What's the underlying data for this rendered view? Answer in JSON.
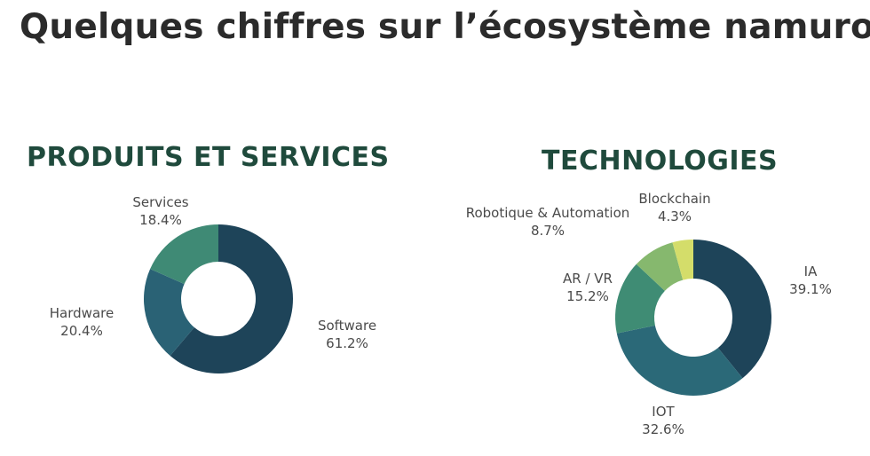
{
  "page": {
    "title": "Quelques chiffres sur l’écosystème namurois"
  },
  "chart_data": [
    {
      "type": "pie",
      "title": "PRODUITS ET SERVICES",
      "slices": [
        {
          "label": "Software",
          "value": 61.2,
          "display": "61.2%",
          "color": "#1e4459"
        },
        {
          "label": "Hardware",
          "value": 20.4,
          "display": "20.4%",
          "color": "#2a6275"
        },
        {
          "label": "Services",
          "value": 18.4,
          "display": "18.4%",
          "color": "#3f8a75"
        }
      ]
    },
    {
      "type": "pie",
      "title": "TECHNOLOGIES",
      "slices": [
        {
          "label": "IA",
          "value": 39.1,
          "display": "39.1%",
          "color": "#1e4459"
        },
        {
          "label": "IOT",
          "value": 32.6,
          "display": "32.6%",
          "color": "#2b6978"
        },
        {
          "label": "AR / VR",
          "value": 15.2,
          "display": "15.2%",
          "color": "#3f8c74"
        },
        {
          "label": "Robotique & Automation",
          "value": 8.7,
          "display": "8.7%",
          "color": "#86b86e"
        },
        {
          "label": "Blockchain",
          "value": 4.3,
          "display": "4.3%",
          "color": "#d4dd6a"
        }
      ]
    }
  ]
}
